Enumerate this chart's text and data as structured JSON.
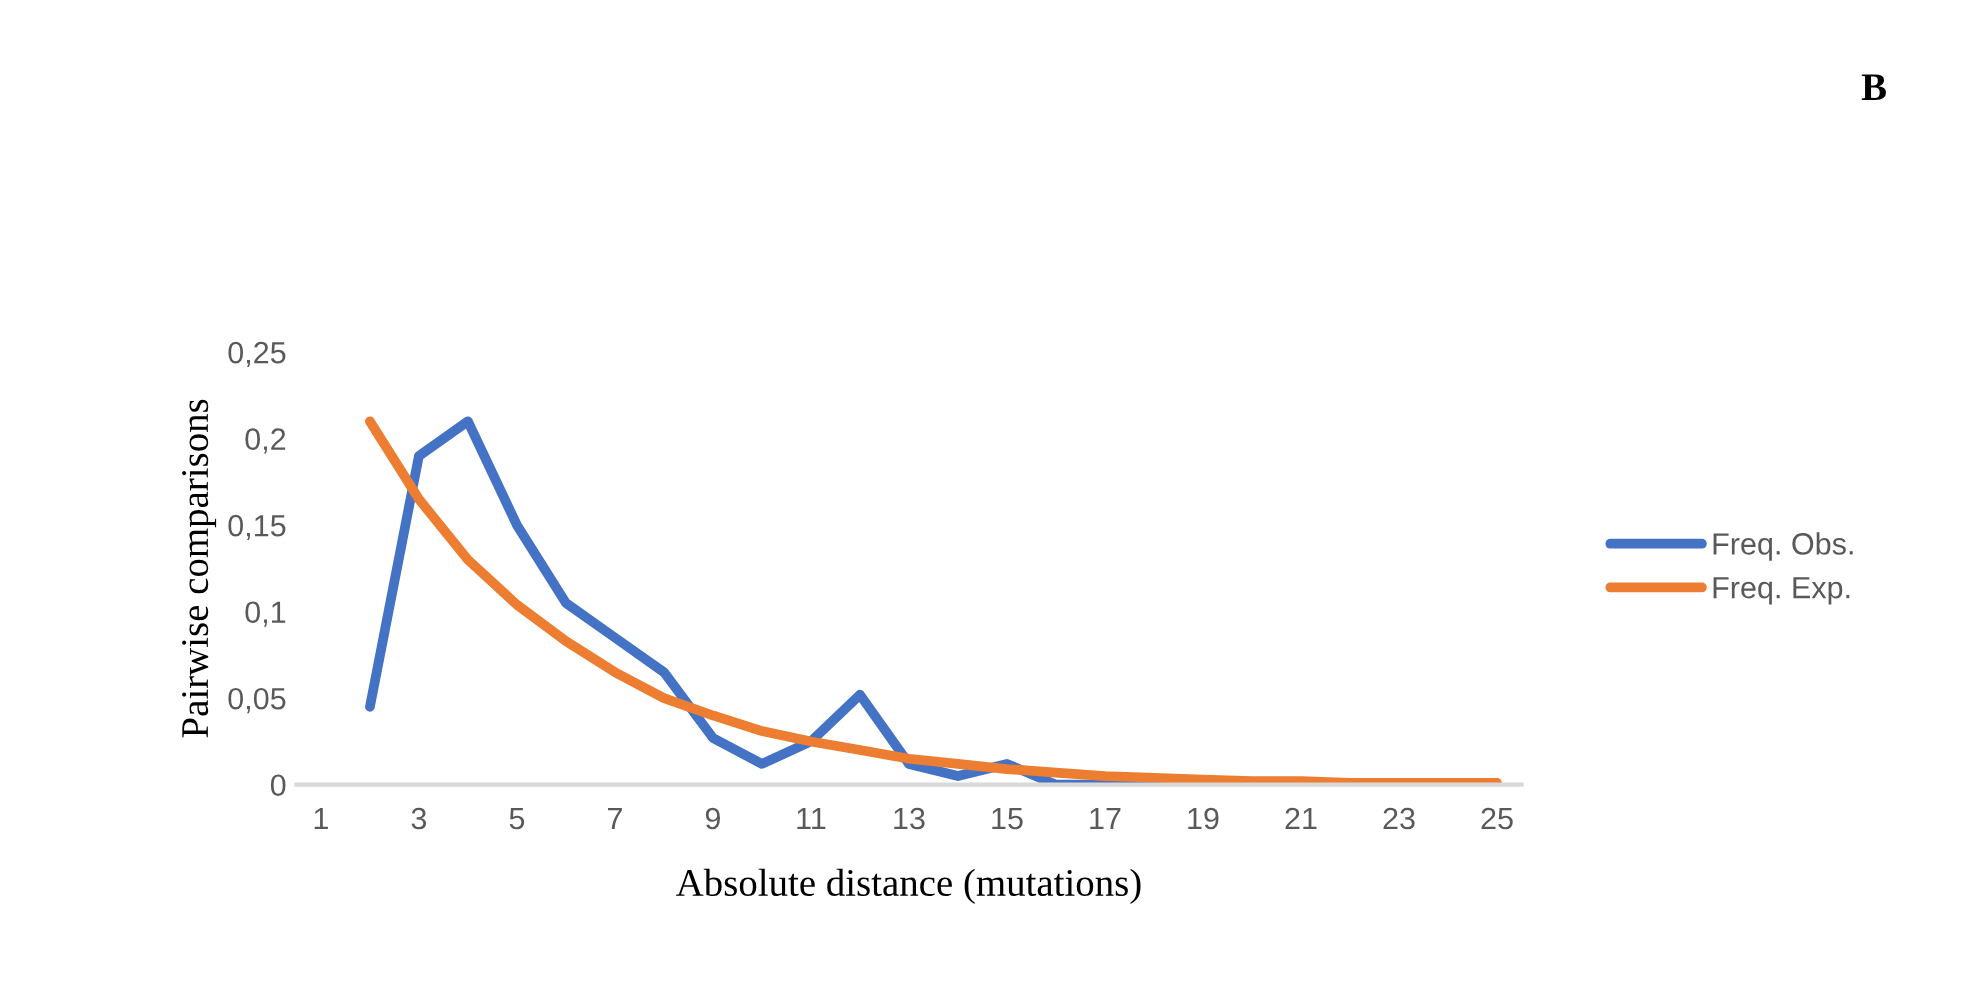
{
  "chart_data": {
    "type": "line",
    "xlabel": "Absolute distance (mutations)",
    "ylabel": "Pairwise comparisons",
    "annotations": [
      "B"
    ],
    "categories": [
      "1",
      null,
      "3",
      null,
      "5",
      null,
      "7",
      null,
      "9",
      null,
      "11",
      null,
      "13",
      null,
      "15",
      null,
      "17",
      null,
      "19",
      null,
      "21",
      null,
      "23",
      null,
      "25"
    ],
    "series": [
      {
        "name": "Freq. Obs.",
        "color": "#4472c4",
        "values": [
          null,
          0.045,
          0.19,
          0.21,
          0.15,
          0.105,
          0.085,
          0.065,
          0.027,
          0.012,
          0.025,
          0.052,
          0.012,
          0.005,
          0.012,
          0,
          0,
          0,
          0,
          null,
          null,
          null,
          null,
          null,
          null
        ]
      },
      {
        "name": "Freq. Exp.",
        "color": "#ed7d31",
        "values": [
          null,
          0.21,
          0.165,
          0.13,
          0.104,
          0.083,
          0.065,
          0.05,
          0.04,
          0.031,
          0.025,
          0.02,
          0.015,
          0.012,
          0.009,
          0.007,
          0.005,
          0.004,
          0.003,
          0.002,
          0.002,
          0.001,
          0.001,
          0.001,
          0.001
        ]
      }
    ],
    "ylim": [
      0,
      0.25
    ],
    "yticks": [
      {
        "value": 0,
        "label": "0"
      },
      {
        "value": 0.05,
        "label": "0,05"
      },
      {
        "value": 0.1,
        "label": "0,1"
      },
      {
        "value": 0.15,
        "label": "0,15"
      },
      {
        "value": 0.2,
        "label": "0,2"
      },
      {
        "value": 0.25,
        "label": "0,25"
      }
    ],
    "legend": "right",
    "grid": false
  }
}
